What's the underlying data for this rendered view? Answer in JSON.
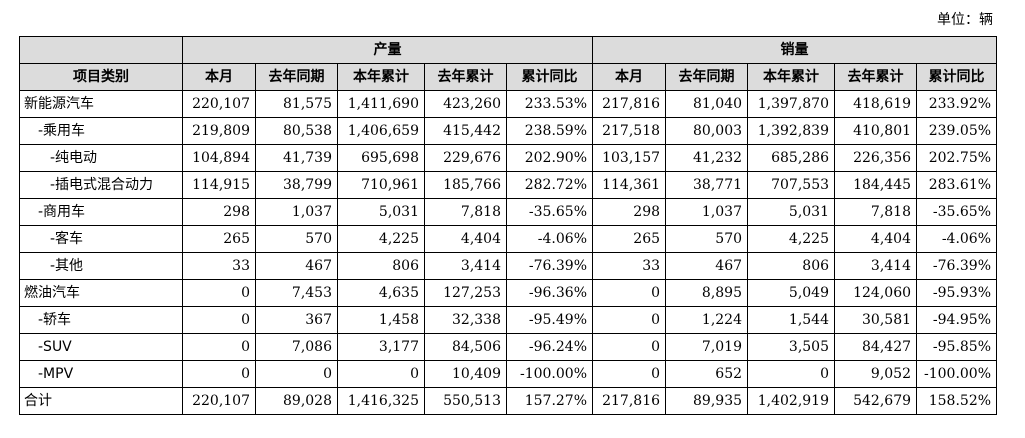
{
  "unit_note": "单位：辆",
  "header": {
    "group_production": "产量",
    "group_sales": "销量",
    "category": "项目类别",
    "columns": [
      "本月",
      "去年同期",
      "本年累计",
      "去年累计",
      "累计同比",
      "本月",
      "去年同期",
      "本年累计",
      "去年累计",
      "累计同比"
    ]
  },
  "rows": [
    {
      "label": "新能源汽车",
      "values": [
        "220,107",
        "81,575",
        "1,411,690",
        "423,260",
        "233.53%",
        "217,816",
        "81,040",
        "1,397,870",
        "418,619",
        "233.92%"
      ]
    },
    {
      "label": "-乘用车",
      "values": [
        "219,809",
        "80,538",
        "1,406,659",
        "415,442",
        "238.59%",
        "217,518",
        "80,003",
        "1,392,839",
        "410,801",
        "239.05%"
      ]
    },
    {
      "label": "-纯电动",
      "values": [
        "104,894",
        "41,739",
        "695,698",
        "229,676",
        "202.90%",
        "103,157",
        "41,232",
        "685,286",
        "226,356",
        "202.75%"
      ]
    },
    {
      "label": "-插电式混合动力",
      "values": [
        "114,915",
        "38,799",
        "710,961",
        "185,766",
        "282.72%",
        "114,361",
        "38,771",
        "707,553",
        "184,445",
        "283.61%"
      ]
    },
    {
      "label": "-商用车",
      "values": [
        "298",
        "1,037",
        "5,031",
        "7,818",
        "-35.65%",
        "298",
        "1,037",
        "5,031",
        "7,818",
        "-35.65%"
      ]
    },
    {
      "label": "-客车",
      "values": [
        "265",
        "570",
        "4,225",
        "4,404",
        "-4.06%",
        "265",
        "570",
        "4,225",
        "4,404",
        "-4.06%"
      ]
    },
    {
      "label": "-其他",
      "values": [
        "33",
        "467",
        "806",
        "3,414",
        "-76.39%",
        "33",
        "467",
        "806",
        "3,414",
        "-76.39%"
      ]
    },
    {
      "label": "燃油汽车",
      "values": [
        "0",
        "7,453",
        "4,635",
        "127,253",
        "-96.36%",
        "0",
        "8,895",
        "5,049",
        "124,060",
        "-95.93%"
      ]
    },
    {
      "label": "-轿车",
      "values": [
        "0",
        "367",
        "1,458",
        "32,338",
        "-95.49%",
        "0",
        "1,224",
        "1,544",
        "30,581",
        "-94.95%"
      ]
    },
    {
      "label": "-SUV",
      "values": [
        "0",
        "7,086",
        "3,177",
        "84,506",
        "-96.24%",
        "0",
        "7,019",
        "3,505",
        "84,427",
        "-95.85%"
      ]
    },
    {
      "label": "-MPV",
      "values": [
        "0",
        "0",
        "0",
        "10,409",
        "-100.00%",
        "0",
        "652",
        "0",
        "9,052",
        "-100.00%"
      ]
    },
    {
      "label": "合计",
      "values": [
        "220,107",
        "89,028",
        "1,416,325",
        "550,513",
        "157.27%",
        "217,816",
        "89,935",
        "1,402,919",
        "542,679",
        "158.52%"
      ]
    }
  ]
}
